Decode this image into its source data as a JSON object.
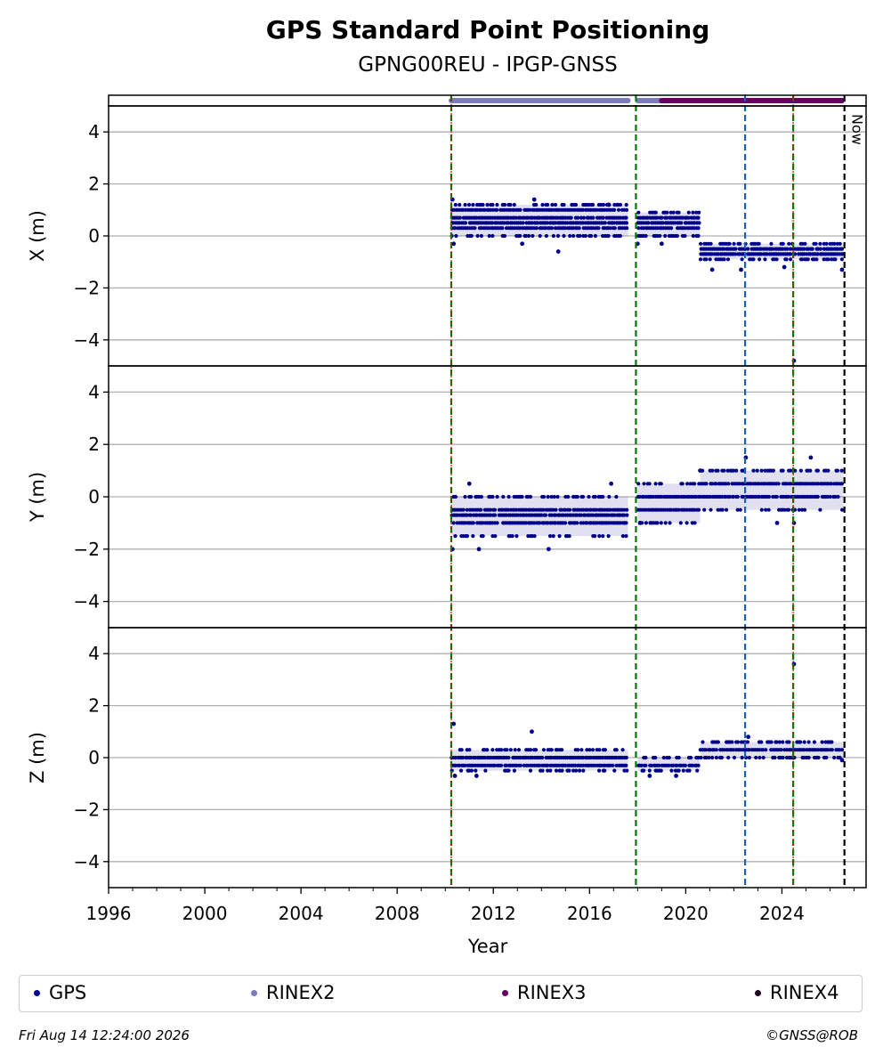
{
  "chart_data": {
    "type": "scatter",
    "title": "GPS Standard Point Positioning",
    "subtitle": "GPNG00REU - IPGP-GNSS",
    "xlabel": "Year",
    "xlim": [
      1996,
      2027.5
    ],
    "xticks": [
      "1996",
      "2000",
      "2004",
      "2008",
      "2012",
      "2016",
      "2020",
      "2024"
    ],
    "ylim": [
      -5,
      5
    ],
    "yticks": [
      "−4",
      "−2",
      "0",
      "2",
      "4"
    ],
    "grid": true,
    "legend_position": "bottom",
    "now_label": "Now",
    "colors": {
      "gps": "#00008b",
      "rinex2": "#7b7bbd",
      "rinex3": "#660066",
      "rinex4": "#220022",
      "event_green": "#007a00",
      "event_blue": "#1f5fb0",
      "event_red": "#dd0000",
      "now_line": "#000000"
    },
    "data_availability": [
      {
        "name": "RINEX2",
        "start": 2010.25,
        "end": 2017.6
      },
      {
        "name": "RINEX2",
        "start": 2018.0,
        "end": 2019.0
      },
      {
        "name": "RINEX3",
        "start": 2019.0,
        "end": 2026.5
      }
    ],
    "event_lines": [
      {
        "x": 2010.25,
        "color": "green",
        "red_overlay": true
      },
      {
        "x": 2017.93,
        "color": "green",
        "red_overlay": false
      },
      {
        "x": 2022.47,
        "color": "blue",
        "red_overlay": false
      },
      {
        "x": 2024.47,
        "color": "green",
        "red_overlay": true
      }
    ],
    "now_x": 2026.6,
    "series": [
      {
        "name": "GPS",
        "panel": "X",
        "ylabel": "X (m)",
        "segments": [
          {
            "start": 2010.25,
            "end": 2017.6,
            "levels": [
              1.2,
              1.0,
              0.7,
              0.5,
              0.3,
              0.0
            ]
          },
          {
            "start": 2018.0,
            "end": 2020.6,
            "levels": [
              0.9,
              0.7,
              0.5,
              0.3,
              0.0
            ]
          },
          {
            "start": 2020.6,
            "end": 2026.55,
            "levels": [
              -0.3,
              -0.5,
              -0.7,
              -0.9
            ]
          }
        ],
        "outliers": [
          [
            2010.3,
            1.4
          ],
          [
            2010.35,
            -0.3
          ],
          [
            2013.2,
            -0.3
          ],
          [
            2013.7,
            1.4
          ],
          [
            2014.7,
            -0.6
          ],
          [
            2016.8,
            1.2
          ],
          [
            2018.0,
            -0.3
          ],
          [
            2019.0,
            -0.3
          ],
          [
            2021.1,
            -1.3
          ],
          [
            2022.3,
            -1.3
          ],
          [
            2024.1,
            -1.2
          ],
          [
            2024.5,
            -4.8
          ],
          [
            2026.5,
            -1.3
          ]
        ]
      },
      {
        "name": "GPS",
        "panel": "Y",
        "ylabel": "Y (m)",
        "segments": [
          {
            "start": 2010.25,
            "end": 2017.6,
            "levels": [
              0.0,
              -0.5,
              -0.7,
              -1.0,
              -1.5
            ]
          },
          {
            "start": 2018.0,
            "end": 2020.6,
            "levels": [
              0.5,
              0.0,
              -0.5,
              -1.0
            ]
          },
          {
            "start": 2020.6,
            "end": 2026.55,
            "levels": [
              1.0,
              0.5,
              0.0,
              -0.5
            ]
          }
        ],
        "outliers": [
          [
            2010.3,
            -2.0
          ],
          [
            2011.0,
            0.5
          ],
          [
            2011.4,
            -2.0
          ],
          [
            2014.3,
            -2.0
          ],
          [
            2016.9,
            0.5
          ],
          [
            2018.1,
            -1.0
          ],
          [
            2020.6,
            1.0
          ],
          [
            2022.5,
            1.5
          ],
          [
            2023.8,
            -1.0
          ],
          [
            2024.5,
            -1.0
          ],
          [
            2025.2,
            1.5
          ]
        ]
      },
      {
        "name": "GPS",
        "panel": "Z",
        "ylabel": "Z (m)",
        "segments": [
          {
            "start": 2010.25,
            "end": 2017.6,
            "levels": [
              0.3,
              0.0,
              -0.3,
              -0.5
            ]
          },
          {
            "start": 2018.0,
            "end": 2020.6,
            "levels": [
              0.0,
              -0.3,
              -0.5
            ]
          },
          {
            "start": 2020.6,
            "end": 2026.55,
            "levels": [
              0.6,
              0.3,
              0.0
            ]
          }
        ],
        "outliers": [
          [
            2010.35,
            1.3
          ],
          [
            2010.4,
            -0.7
          ],
          [
            2011.3,
            -0.7
          ],
          [
            2013.6,
            1.0
          ],
          [
            2018.5,
            -0.7
          ],
          [
            2019.6,
            -0.7
          ],
          [
            2022.6,
            0.8
          ],
          [
            2024.5,
            3.6
          ],
          [
            2026.5,
            -0.1
          ]
        ]
      }
    ]
  },
  "legend": {
    "items": [
      {
        "label": "GPS",
        "color": "#00008b"
      },
      {
        "label": "RINEX2",
        "color": "#7b7bbd"
      },
      {
        "label": "RINEX3",
        "color": "#660066"
      },
      {
        "label": "RINEX4",
        "color": "#220022"
      }
    ]
  },
  "footer": {
    "timestamp": "Fri Aug 14 12:24:00 2026",
    "credit": "©GNSS@ROB"
  }
}
